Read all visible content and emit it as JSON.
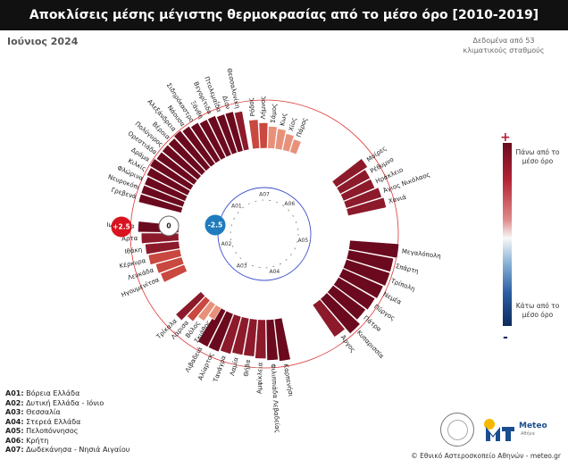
{
  "title": "Αποκλίσεις μέσης μέγιστης θερμοκρασίας από το μέσο όρο [2010-2019]",
  "month": "Ιούνιος 2024",
  "source_note": [
    "Δεδομένα από 53",
    "κλιματικούς σταθμούς"
  ],
  "credit": "© Εθνικό Αστεροσκοπείο Αθηνών - meteo.gr",
  "logo_text": "Meteo",
  "logo_sub": "Αθήνα",
  "colorbar": {
    "plus": "+",
    "minus": "-",
    "top_label": "Πάνω από το μέσο όρο",
    "bottom_label": "Κάτω από το μέσο όρο"
  },
  "legend": [
    {
      "code": "A01:",
      "name": "Βόρεια Ελλάδα"
    },
    {
      "code": "A02:",
      "name": "Δυτική Ελλάδα - Ιόνιο"
    },
    {
      "code": "A03:",
      "name": "Θεσσαλία"
    },
    {
      "code": "A04:",
      "name": "Στερεά Ελλάδα"
    },
    {
      "code": "A05:",
      "name": "Πελοπόννησος"
    },
    {
      "code": "A06:",
      "name": "Κρήτη"
    },
    {
      "code": "A07:",
      "name": "Δωδεκάνησα - Νησιά Αιγαίου"
    }
  ],
  "colors": {
    "dark": "#6b0a1e",
    "mid": "#8c1a2b",
    "light": "#c9483f",
    "pale": "#e8917a",
    "pos_badge": "#d7141f",
    "neg_badge": "#1f7bbd",
    "ring_red": "#d33",
    "ring_blue": "#3a4ec9"
  },
  "chart_data": {
    "type": "radial-bar",
    "scale_badges": {
      "pos": "+2.5",
      "zero": "0",
      "neg": "-2.5"
    },
    "rlim": [
      -2.5,
      2.5
    ],
    "inner_region_labels": [
      "A01",
      "A02",
      "A03",
      "A04",
      "A05",
      "A06",
      "A07"
    ],
    "groups": [
      {
        "region": "A07",
        "stations": [
          {
            "name": "Ρόδος",
            "value": 1.7
          },
          {
            "name": "Λήμνος",
            "value": 1.5
          },
          {
            "name": "Σάμος",
            "value": 1.3
          },
          {
            "name": "Κως",
            "value": 1.2
          },
          {
            "name": "Χίος",
            "value": 1.0
          },
          {
            "name": "Πάρος",
            "value": 0.8
          }
        ]
      },
      {
        "region": "A06",
        "stations": [
          {
            "name": "Μοίρες",
            "value": 2.2
          },
          {
            "name": "Ρέθυμνο",
            "value": 2.0
          },
          {
            "name": "Ηράκλειο",
            "value": 2.0
          },
          {
            "name": "Άγιος Νικόλαος",
            "value": 2.2
          },
          {
            "name": "Χανιά",
            "value": 2.3
          }
        ]
      },
      {
        "region": "A05",
        "stations": [
          {
            "name": "Μεγαλόπολη",
            "value": 2.9
          },
          {
            "name": "Σπάρτη",
            "value": 2.7
          },
          {
            "name": "Τρίπολη",
            "value": 2.7
          },
          {
            "name": "Νεμέα",
            "value": 2.6
          },
          {
            "name": "Πύργος",
            "value": 2.5
          },
          {
            "name": "Πάτρα",
            "value": 2.4
          },
          {
            "name": "Κυπαρισσία",
            "value": 2.7
          },
          {
            "name": "Άργος",
            "value": 2.3
          }
        ]
      },
      {
        "region": "A04",
        "stations": [
          {
            "name": "Καρπενήσι",
            "value": 2.5
          },
          {
            "name": "Φιλιππιάδα Λεβαδείας",
            "value": 2.4
          },
          {
            "name": "Αμφίκλεια",
            "value": 2.3
          },
          {
            "name": "Θήβα",
            "value": 2.2
          },
          {
            "name": "Λαμία",
            "value": 2.2
          },
          {
            "name": "Τανάγρα",
            "value": 2.3
          },
          {
            "name": "Αλίαρτος",
            "value": 2.4
          },
          {
            "name": "Λιβαδειά",
            "value": 2.4
          }
        ]
      },
      {
        "region": "A03",
        "stations": [
          {
            "name": "Σκιάθος",
            "value": 0.8
          },
          {
            "name": "Βόλος",
            "value": 1.2
          },
          {
            "name": "Λάρισα",
            "value": 1.6
          },
          {
            "name": "Τρίκαλα",
            "value": 2.0
          }
        ]
      },
      {
        "region": "A02",
        "stations": [
          {
            "name": "Ηγουμενίτσα",
            "value": 1.5
          },
          {
            "name": "Λευκάδα",
            "value": 1.6
          },
          {
            "name": "Κέρκυρα",
            "value": 1.9
          },
          {
            "name": "Ιθάκη",
            "value": 2.0
          },
          {
            "name": "Άρτα",
            "value": 2.2
          },
          {
            "name": "Ιωάννινα",
            "value": 2.4
          }
        ]
      },
      {
        "region": "A01",
        "stations": [
          {
            "name": "Γρεβενά",
            "value": 2.6
          },
          {
            "name": "Νευροκόπι",
            "value": 2.6
          },
          {
            "name": "Φλώρινα",
            "value": 2.6
          },
          {
            "name": "Κιλκίς",
            "value": 2.7
          },
          {
            "name": "Δράμα",
            "value": 2.8
          },
          {
            "name": "Ορεστιάδα",
            "value": 2.7
          },
          {
            "name": "Πολύγυρος",
            "value": 2.7
          },
          {
            "name": "Βέροια",
            "value": 2.7
          },
          {
            "name": "Αλεξάνδρεια",
            "value": 2.8
          },
          {
            "name": "Νάουσα",
            "value": 2.7
          },
          {
            "name": "Σιδηρόκαστρο",
            "value": 2.6
          },
          {
            "name": "Ξάνθη",
            "value": 2.5
          },
          {
            "name": "Βεγορίτιδα",
            "value": 2.5
          },
          {
            "name": "Πτολεμαΐδα",
            "value": 2.4
          },
          {
            "name": "Δίον",
            "value": 2.4
          },
          {
            "name": "Θεσσαλονίκη",
            "value": 2.3
          }
        ]
      }
    ]
  }
}
